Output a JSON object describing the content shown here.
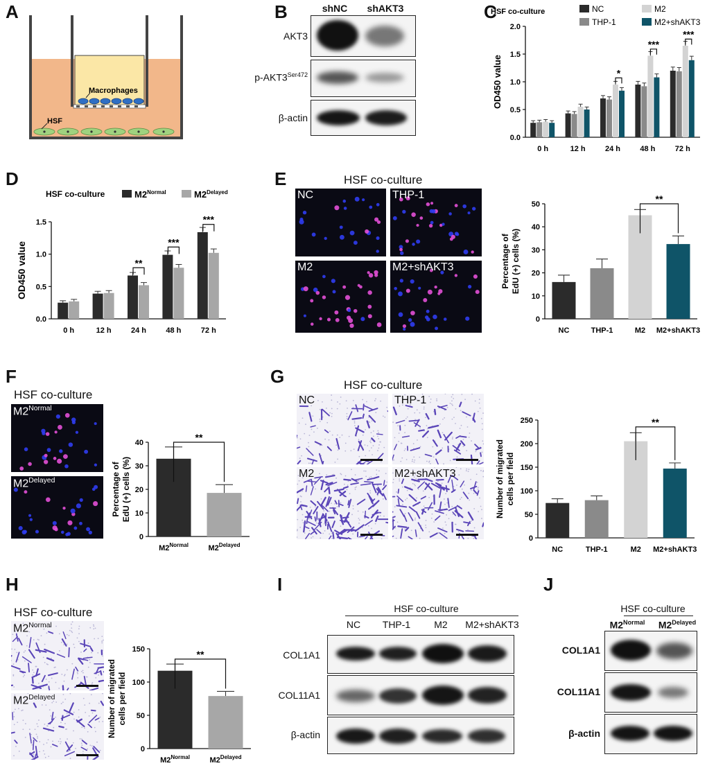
{
  "panels": {
    "A": "A",
    "B": "B",
    "C": "C",
    "D": "D",
    "E": "E",
    "F": "F",
    "G": "G",
    "H": "H",
    "I": "I",
    "J": "J"
  },
  "diagram_a": {
    "macrophages": "Macrophages",
    "hsf": "HSF"
  },
  "blot_b": {
    "lanes": [
      "shNC",
      "shAKT3"
    ],
    "rows": [
      "AKT3",
      "p-AKT3",
      "β-actin"
    ],
    "row_sup": "Ser472"
  },
  "blot_i": {
    "header": "HSF co-culture",
    "lanes": [
      "NC",
      "THP-1",
      "M2",
      "M2+shAKT3"
    ],
    "rows": [
      "COL1A1",
      "COL11A1",
      "β-actin"
    ]
  },
  "blot_j": {
    "header": "HSF co-culture",
    "lanes": [
      "M2",
      "M2"
    ],
    "lane_sups": [
      "Normal",
      "Delayed"
    ],
    "rows": [
      "COL1A1",
      "COL11A1",
      "β-actin"
    ]
  },
  "images_e": {
    "title": "HSF co-culture",
    "labels": [
      "NC",
      "THP-1",
      "M2",
      "M2+shAKT3"
    ]
  },
  "images_f": {
    "title": "HSF co-culture",
    "labels": [
      "M2",
      "M2"
    ],
    "sups": [
      "Normal",
      "Delayed"
    ]
  },
  "images_g": {
    "title": "HSF co-culture",
    "labels": [
      "NC",
      "THP-1",
      "M2",
      "M2+shAKT3"
    ]
  },
  "images_h": {
    "title": "HSF co-culture",
    "labels": [
      "M2",
      "M2"
    ],
    "sups": [
      "Normal",
      "Delayed"
    ]
  },
  "colors": {
    "nc": "#2b2b2b",
    "thp1": "#8a8a8a",
    "m2": "#d3d3d3",
    "shakt3": "#0f5468",
    "normal": "#2b2b2b",
    "delayed": "#a7a7a7"
  },
  "chart_data": [
    {
      "id": "C",
      "type": "bar",
      "title": "HSF co-culture",
      "ylabel": "OD450 value",
      "ylim": [
        0,
        2.0
      ],
      "yticks": [
        "0.0",
        "0.5",
        "1.0",
        "1.5",
        "2.0"
      ],
      "categories": [
        "0 h",
        "12 h",
        "24 h",
        "48 h",
        "72 h"
      ],
      "legend": [
        "NC",
        "M2",
        "THP-1",
        "M2+shAKT3"
      ],
      "series": [
        {
          "name": "NC",
          "values": [
            0.26,
            0.43,
            0.7,
            0.95,
            1.2
          ]
        },
        {
          "name": "THP-1",
          "values": [
            0.27,
            0.42,
            0.68,
            0.92,
            1.19
          ]
        },
        {
          "name": "M2",
          "values": [
            0.28,
            0.55,
            0.95,
            1.47,
            1.65
          ]
        },
        {
          "name": "M2+shAKT3",
          "values": [
            0.26,
            0.5,
            0.84,
            1.08,
            1.39
          ]
        }
      ],
      "annotations": [
        "*",
        "***",
        "***"
      ]
    },
    {
      "id": "D",
      "type": "bar",
      "title": "HSF co-culture",
      "ylabel": "OD450 value",
      "ylim": [
        0,
        1.5
      ],
      "yticks": [
        "0.0",
        "0.5",
        "1.0",
        "1.5"
      ],
      "categories": [
        "0 h",
        "12 h",
        "24 h",
        "48 h",
        "72 h"
      ],
      "legend": [
        "M2",
        "M2"
      ],
      "legend_sups": [
        "Normal",
        "Delayed"
      ],
      "series": [
        {
          "name": "M2 Normal",
          "values": [
            0.25,
            0.39,
            0.67,
            0.99,
            1.34
          ]
        },
        {
          "name": "M2 Delayed",
          "values": [
            0.27,
            0.4,
            0.52,
            0.79,
            1.02
          ]
        }
      ],
      "annotations": [
        "**",
        "***",
        "***"
      ]
    },
    {
      "id": "E",
      "type": "bar",
      "ylabel": "Percentage of EdU (+) cells (%)",
      "ylabel_lines": [
        "Percentage of",
        "EdU (+) cells  (%)"
      ],
      "ylim": [
        0,
        50
      ],
      "yticks": [
        "0",
        "10",
        "20",
        "30",
        "40",
        "50"
      ],
      "categories": [
        "NC",
        "THP-1",
        "M2",
        "M2+shAKT3"
      ],
      "values": [
        16,
        22,
        45,
        32.5
      ],
      "errors": [
        3,
        4,
        2.5,
        3.5
      ],
      "annotations": [
        "**"
      ]
    },
    {
      "id": "F",
      "type": "bar",
      "ylabel": "Percentage of EdU (+) cells (%)",
      "ylabel_lines": [
        "Percentage of",
        "EdU (+) cells  (%)"
      ],
      "ylim": [
        0,
        40
      ],
      "yticks": [
        "0",
        "10",
        "20",
        "30",
        "40"
      ],
      "categories": [
        "M2",
        "M2"
      ],
      "category_sups": [
        "Normal",
        "Delayed"
      ],
      "values": [
        33,
        18.5
      ],
      "errors": [
        5,
        3.5
      ],
      "annotations": [
        "**"
      ]
    },
    {
      "id": "G",
      "type": "bar",
      "ylabel": "Number of migrated cells per field",
      "ylabel_lines": [
        "Number of migrated",
        "cells per field"
      ],
      "ylim": [
        0,
        250
      ],
      "yticks": [
        "0",
        "50",
        "100",
        "150",
        "200",
        "250"
      ],
      "categories": [
        "NC",
        "THP-1",
        "M2",
        "M2+shAKT3"
      ],
      "values": [
        74,
        80,
        205,
        147
      ],
      "errors": [
        9,
        9,
        18,
        12
      ],
      "annotations": [
        "**"
      ]
    },
    {
      "id": "H",
      "type": "bar",
      "ylabel": "Number of migrated cells per field",
      "ylabel_lines": [
        "Number of migrated",
        "cells per field"
      ],
      "ylim": [
        0,
        150
      ],
      "yticks": [
        "0",
        "50",
        "100",
        "150"
      ],
      "categories": [
        "M2",
        "M2"
      ],
      "category_sups": [
        "Normal",
        "Delayed"
      ],
      "values": [
        117,
        79
      ],
      "errors": [
        10,
        7
      ],
      "annotations": [
        "**"
      ]
    }
  ]
}
